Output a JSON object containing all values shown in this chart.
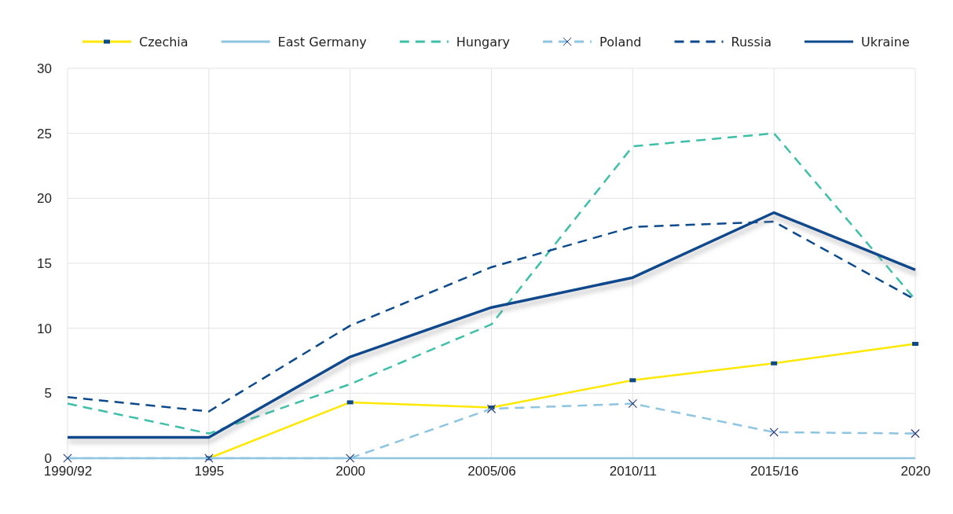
{
  "chart_data": {
    "type": "line",
    "categories": [
      "1990/92",
      "1995",
      "2000",
      "2005/06",
      "2010/11",
      "2015/16",
      "2020"
    ],
    "ylim": [
      0,
      30
    ],
    "yticks": [
      0,
      5,
      10,
      15,
      20,
      25,
      30
    ],
    "grid": true,
    "legend": "top",
    "series": [
      {
        "name": "Czechia",
        "color": "#ffe800",
        "marker": "square",
        "line_style": "solid",
        "values": [
          null,
          0,
          4.3,
          3.9,
          6.0,
          7.3,
          8.8
        ]
      },
      {
        "name": "East Germany",
        "color": "#8ec5e0",
        "marker": "none",
        "line_style": "solid",
        "values": [
          0,
          0,
          0,
          0,
          0,
          0,
          0
        ]
      },
      {
        "name": "Hungary",
        "color": "#3dbfa8",
        "marker": "none",
        "line_style": "dashed",
        "values": [
          4.2,
          1.9,
          5.7,
          10.3,
          24.0,
          25.0,
          12.2
        ]
      },
      {
        "name": "Poland",
        "color": "#8ec5e0",
        "marker": "cross",
        "line_style": "dashed",
        "values": [
          0,
          0,
          0,
          3.8,
          4.2,
          2.0,
          1.9
        ]
      },
      {
        "name": "Russia",
        "color": "#0d4a8c",
        "marker": "none",
        "line_style": "dashed",
        "values": [
          4.7,
          3.6,
          10.2,
          14.7,
          17.8,
          18.2,
          12.2
        ]
      },
      {
        "name": "Ukraine",
        "color": "#0d4a8c",
        "marker": "none",
        "line_style": "solid",
        "values": [
          1.6,
          1.6,
          7.8,
          11.6,
          13.9,
          18.9,
          14.5
        ]
      }
    ]
  }
}
